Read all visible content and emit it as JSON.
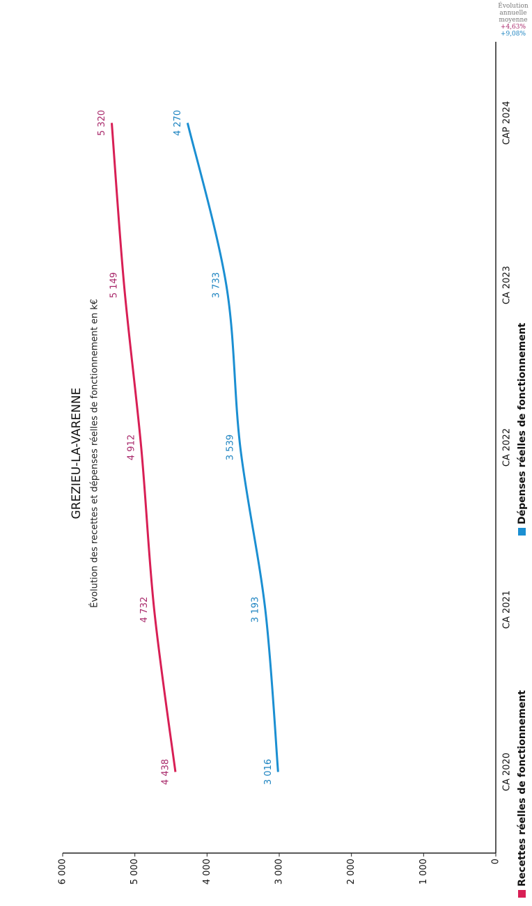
{
  "chart_data": {
    "type": "line",
    "title": "GREZIEU-LA-VARENNE",
    "subtitle": "Évolution des recettes et dépenses réelles de fonctionnement en k€",
    "categories": [
      "CA 2020",
      "CA 2021",
      "CA 2022",
      "CA 2023",
      "CAP 2024"
    ],
    "series": [
      {
        "name": "Recettes réelles de fonctionnement",
        "color": "#d81f55",
        "label_color": "#a8286a",
        "values": [
          4438,
          4732,
          4912,
          5149,
          5320
        ],
        "value_labels": [
          "4 438",
          "4 732",
          "4 912",
          "5 149",
          "5 320"
        ]
      },
      {
        "name": "Dépenses réelles de fonctionnement",
        "color": "#1b8fd2",
        "label_color": "#1a82c0",
        "values": [
          3016,
          3193,
          3539,
          3733,
          4270
        ],
        "value_labels": [
          "3 016",
          "3 193",
          "3 539",
          "3 733",
          "4 270"
        ]
      }
    ],
    "ylim": [
      0,
      6000
    ],
    "yticks": [
      0,
      {
        "value": 1000,
        "label": "1 000"
      },
      {
        "value": 2000,
        "label": "2 000"
      },
      {
        "value": 3000,
        "label": "3 000"
      },
      {
        "value": 4000,
        "label": "4 000"
      },
      {
        "value": 5000,
        "label": "5 000"
      },
      {
        "value": 6000,
        "label": "6 000"
      }
    ],
    "grid": false,
    "annotation": {
      "title": "Évolution annuelle moyenne",
      "values": [
        "+4,63%",
        "+9,08%"
      ]
    }
  }
}
